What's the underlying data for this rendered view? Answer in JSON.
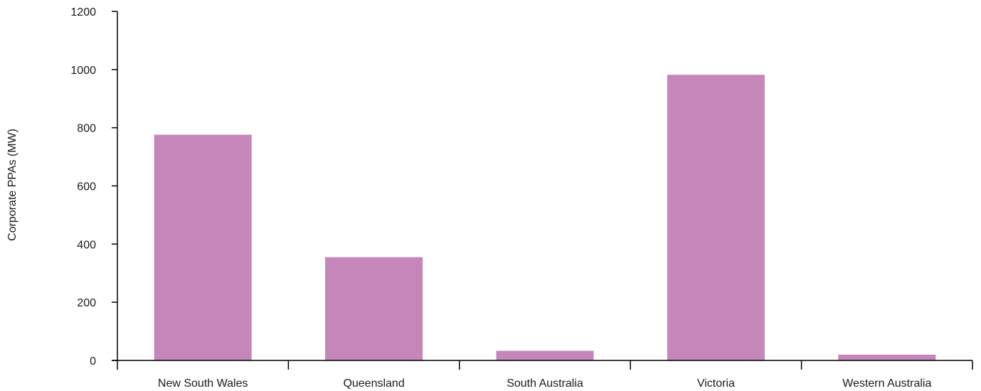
{
  "chart_data": {
    "type": "bar",
    "title": "",
    "xlabel": "",
    "ylabel": "Corporate PPAs (MW)",
    "categories": [
      "New South Wales",
      "Queensland",
      "South Australia",
      "Victoria",
      "Western Australia"
    ],
    "values": [
      776,
      355,
      33,
      982,
      20
    ],
    "ylim": [
      0,
      1200
    ],
    "yticks": [
      0,
      200,
      400,
      600,
      800,
      1000,
      1200
    ],
    "grid": false,
    "legend": "none",
    "bar_color": "#c586b9",
    "axis_color": "#000000"
  }
}
